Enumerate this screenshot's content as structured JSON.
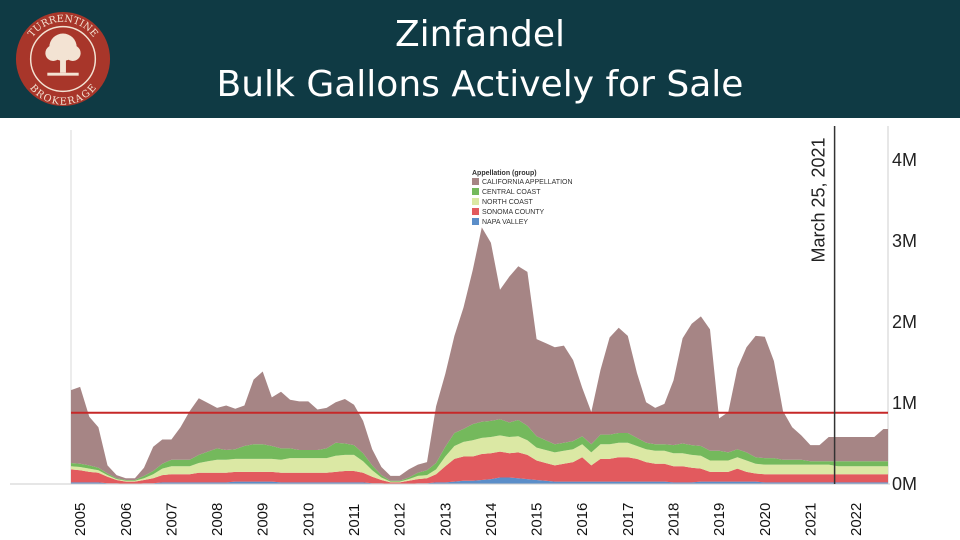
{
  "header": {
    "title_line1": "Zinfandel",
    "title_line2": "Bulk Gallons Actively for Sale",
    "logo_text_top": "TURRENTINE",
    "logo_text_bottom": "BROKERAGE",
    "colors": {
      "band": "#0f3a44",
      "logo": "#a8362a",
      "title": "#ffffff"
    }
  },
  "chart_data": {
    "type": "area",
    "stacked": true,
    "legend_title": "Appellation (group)",
    "annotation": "March 25, 2021",
    "annotation_x": 2021.23,
    "reference_line_value": 0.88,
    "reference_line_color": "#c62828",
    "y_unit": "gallons (millions)",
    "ylim": [
      0,
      4.2
    ],
    "y_ticks": [
      {
        "value": 0,
        "label": "0M"
      },
      {
        "value": 1,
        "label": "1M"
      },
      {
        "value": 2,
        "label": "2M"
      },
      {
        "value": 3,
        "label": "3M"
      },
      {
        "value": 4,
        "label": "4M"
      }
    ],
    "xlim": [
      2004.5,
      2022.4
    ],
    "x_ticks": [
      "2005",
      "2006",
      "2007",
      "2008",
      "2009",
      "2010",
      "2011",
      "2012",
      "2013",
      "2014",
      "2015",
      "2016",
      "2017",
      "2018",
      "2019",
      "2020",
      "2021",
      "2022"
    ],
    "x": [
      2004.5,
      2004.7,
      2004.9,
      2005.1,
      2005.3,
      2005.5,
      2005.7,
      2005.9,
      2006.1,
      2006.3,
      2006.5,
      2006.7,
      2006.9,
      2007.1,
      2007.3,
      2007.5,
      2007.7,
      2007.9,
      2008.1,
      2008.3,
      2008.5,
      2008.7,
      2008.9,
      2009.1,
      2009.3,
      2009.5,
      2009.7,
      2009.9,
      2010.1,
      2010.3,
      2010.5,
      2010.7,
      2010.9,
      2011.1,
      2011.3,
      2011.5,
      2011.7,
      2011.9,
      2012.1,
      2012.3,
      2012.5,
      2012.7,
      2012.9,
      2013.1,
      2013.3,
      2013.5,
      2013.7,
      2013.9,
      2014.1,
      2014.3,
      2014.5,
      2014.7,
      2014.9,
      2015.1,
      2015.3,
      2015.5,
      2015.7,
      2015.9,
      2016.1,
      2016.3,
      2016.5,
      2016.7,
      2016.9,
      2017.1,
      2017.3,
      2017.5,
      2017.7,
      2017.9,
      2018.1,
      2018.3,
      2018.5,
      2018.7,
      2018.9,
      2019.1,
      2019.3,
      2019.5,
      2019.7,
      2019.9,
      2020.1,
      2020.3,
      2020.5,
      2020.7,
      2020.9,
      2021.1,
      2021.3,
      2021.5,
      2021.7,
      2021.9,
      2022.1,
      2022.3,
      2022.4
    ],
    "series": [
      {
        "name": "NAPA VALLEY",
        "color": "#5b8ec9",
        "values": [
          0.02,
          0.02,
          0.02,
          0.02,
          0.01,
          0.01,
          0.0,
          0.0,
          0.01,
          0.01,
          0.02,
          0.02,
          0.02,
          0.02,
          0.02,
          0.02,
          0.02,
          0.02,
          0.03,
          0.03,
          0.03,
          0.03,
          0.03,
          0.02,
          0.02,
          0.02,
          0.02,
          0.02,
          0.02,
          0.02,
          0.02,
          0.02,
          0.02,
          0.01,
          0.01,
          0.0,
          0.0,
          0.0,
          0.01,
          0.01,
          0.02,
          0.02,
          0.03,
          0.04,
          0.04,
          0.05,
          0.06,
          0.08,
          0.08,
          0.07,
          0.06,
          0.05,
          0.04,
          0.03,
          0.03,
          0.03,
          0.03,
          0.03,
          0.03,
          0.03,
          0.03,
          0.03,
          0.03,
          0.03,
          0.03,
          0.03,
          0.02,
          0.02,
          0.02,
          0.03,
          0.03,
          0.03,
          0.03,
          0.03,
          0.03,
          0.03,
          0.02,
          0.02,
          0.02,
          0.02,
          0.02,
          0.02,
          0.02,
          0.02,
          0.02,
          0.02,
          0.02,
          0.02,
          0.02,
          0.02,
          0.02
        ]
      },
      {
        "name": "SONOMA COUNTY",
        "color": "#e25a5e",
        "values": [
          0.16,
          0.15,
          0.13,
          0.12,
          0.08,
          0.04,
          0.03,
          0.03,
          0.04,
          0.06,
          0.09,
          0.1,
          0.1,
          0.1,
          0.12,
          0.12,
          0.12,
          0.12,
          0.12,
          0.12,
          0.12,
          0.12,
          0.12,
          0.12,
          0.12,
          0.12,
          0.12,
          0.12,
          0.12,
          0.13,
          0.14,
          0.14,
          0.12,
          0.08,
          0.04,
          0.02,
          0.02,
          0.04,
          0.05,
          0.06,
          0.1,
          0.2,
          0.28,
          0.3,
          0.3,
          0.32,
          0.32,
          0.32,
          0.3,
          0.32,
          0.3,
          0.24,
          0.22,
          0.2,
          0.22,
          0.24,
          0.3,
          0.2,
          0.28,
          0.28,
          0.3,
          0.3,
          0.28,
          0.24,
          0.22,
          0.22,
          0.2,
          0.2,
          0.18,
          0.16,
          0.12,
          0.12,
          0.12,
          0.16,
          0.12,
          0.1,
          0.1,
          0.1,
          0.1,
          0.1,
          0.1,
          0.1,
          0.1,
          0.1,
          0.1,
          0.1,
          0.1,
          0.1,
          0.1,
          0.1,
          0.1
        ]
      },
      {
        "name": "NORTH COAST",
        "color": "#dbe8a4",
        "values": [
          0.04,
          0.04,
          0.04,
          0.03,
          0.02,
          0.01,
          0.01,
          0.01,
          0.02,
          0.05,
          0.08,
          0.1,
          0.1,
          0.1,
          0.12,
          0.14,
          0.16,
          0.16,
          0.16,
          0.16,
          0.16,
          0.16,
          0.16,
          0.16,
          0.18,
          0.18,
          0.18,
          0.18,
          0.18,
          0.2,
          0.2,
          0.2,
          0.14,
          0.08,
          0.03,
          0.01,
          0.01,
          0.02,
          0.04,
          0.04,
          0.06,
          0.12,
          0.16,
          0.18,
          0.2,
          0.2,
          0.2,
          0.2,
          0.2,
          0.2,
          0.18,
          0.16,
          0.16,
          0.16,
          0.16,
          0.16,
          0.16,
          0.16,
          0.18,
          0.18,
          0.18,
          0.18,
          0.16,
          0.16,
          0.16,
          0.16,
          0.16,
          0.16,
          0.16,
          0.16,
          0.14,
          0.14,
          0.14,
          0.14,
          0.14,
          0.12,
          0.12,
          0.12,
          0.12,
          0.12,
          0.12,
          0.12,
          0.12,
          0.12,
          0.1,
          0.1,
          0.1,
          0.1,
          0.1,
          0.1,
          0.1
        ]
      },
      {
        "name": "CENTRAL COAST",
        "color": "#74b95c",
        "values": [
          0.04,
          0.04,
          0.04,
          0.03,
          0.02,
          0.01,
          0.01,
          0.01,
          0.03,
          0.04,
          0.06,
          0.08,
          0.08,
          0.08,
          0.1,
          0.12,
          0.14,
          0.12,
          0.12,
          0.16,
          0.18,
          0.18,
          0.16,
          0.14,
          0.12,
          0.1,
          0.1,
          0.1,
          0.12,
          0.16,
          0.14,
          0.12,
          0.1,
          0.06,
          0.03,
          0.01,
          0.01,
          0.02,
          0.04,
          0.06,
          0.08,
          0.12,
          0.16,
          0.16,
          0.2,
          0.2,
          0.2,
          0.2,
          0.18,
          0.2,
          0.18,
          0.14,
          0.12,
          0.1,
          0.1,
          0.1,
          0.1,
          0.1,
          0.12,
          0.12,
          0.12,
          0.12,
          0.1,
          0.08,
          0.08,
          0.08,
          0.1,
          0.12,
          0.12,
          0.12,
          0.12,
          0.12,
          0.1,
          0.1,
          0.1,
          0.08,
          0.08,
          0.08,
          0.06,
          0.06,
          0.06,
          0.04,
          0.04,
          0.04,
          0.06,
          0.06,
          0.06,
          0.06,
          0.06,
          0.06,
          0.06
        ]
      },
      {
        "name": "CALIFORNIA APPELLATION",
        "color": "#a68585",
        "values": [
          0.9,
          0.95,
          0.6,
          0.5,
          0.1,
          0.04,
          0.02,
          0.02,
          0.1,
          0.3,
          0.3,
          0.25,
          0.4,
          0.6,
          0.7,
          0.6,
          0.5,
          0.55,
          0.5,
          0.5,
          0.8,
          0.9,
          0.6,
          0.7,
          0.6,
          0.6,
          0.6,
          0.5,
          0.5,
          0.5,
          0.55,
          0.5,
          0.4,
          0.2,
          0.1,
          0.06,
          0.06,
          0.1,
          0.1,
          0.1,
          0.7,
          0.9,
          1.2,
          1.5,
          1.9,
          2.4,
          2.2,
          1.6,
          1.8,
          1.9,
          1.9,
          1.2,
          1.2,
          1.2,
          1.2,
          1.0,
          0.6,
          0.4,
          0.8,
          1.2,
          1.3,
          1.2,
          0.8,
          0.5,
          0.45,
          0.5,
          0.8,
          1.3,
          1.5,
          1.6,
          1.5,
          0.4,
          0.5,
          1.0,
          1.3,
          1.5,
          1.5,
          1.2,
          0.6,
          0.4,
          0.3,
          0.2,
          0.2,
          0.3,
          0.3,
          0.3,
          0.3,
          0.3,
          0.3,
          0.4,
          0.4
        ]
      }
    ]
  }
}
